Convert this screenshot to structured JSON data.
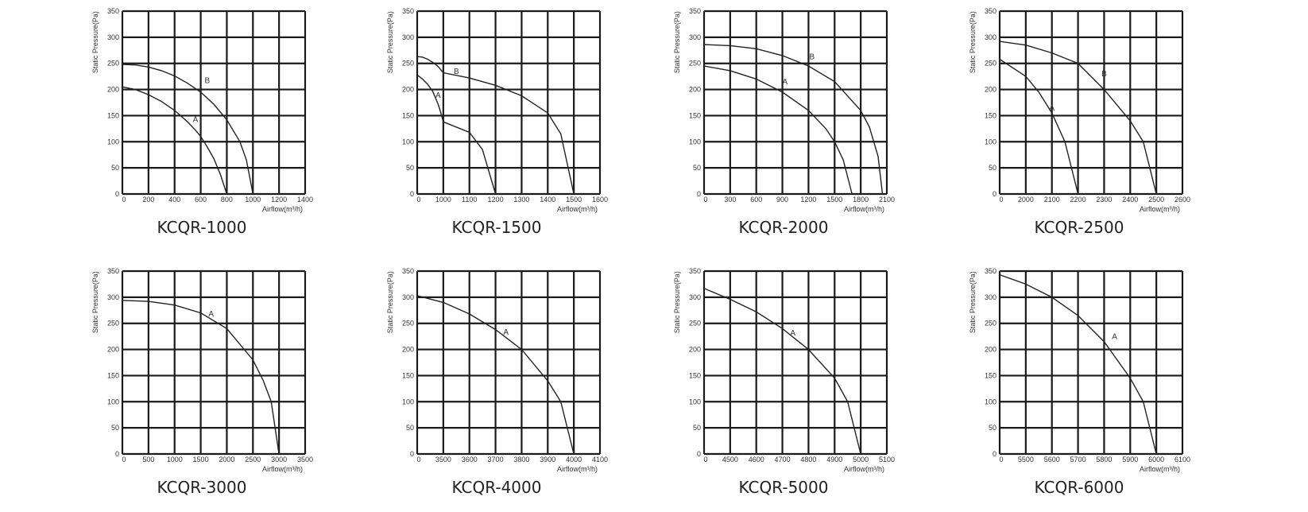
{
  "chart_data": [
    {
      "type": "line",
      "title": "KCQR-1000",
      "xlabel": "Airflow(m³/h)",
      "ylabel": "Static Pressure(Pa)",
      "x_ticks": [
        "0",
        "200",
        "400",
        "600",
        "800",
        "1000",
        "1200",
        "1400"
      ],
      "y_ticks": [
        "0",
        "50",
        "100",
        "150",
        "200",
        "250",
        "300",
        "350"
      ],
      "xlim": [
        0,
        1400
      ],
      "ylim": [
        0,
        350
      ],
      "grid": true,
      "series": [
        {
          "name": "A",
          "x": [
            0,
            100,
            200,
            300,
            400,
            500,
            560,
            600,
            650,
            700,
            750,
            800
          ],
          "y": [
            205,
            200,
            190,
            177,
            160,
            138,
            122,
            110,
            90,
            68,
            38,
            0
          ],
          "label_at": [
            560,
            138
          ]
        },
        {
          "name": "B",
          "x": [
            0,
            100,
            200,
            300,
            400,
            500,
            600,
            700,
            800,
            900,
            950,
            1000
          ],
          "y": [
            248,
            247,
            243,
            236,
            226,
            212,
            195,
            172,
            142,
            100,
            65,
            0
          ],
          "label_at": [
            650,
            212
          ]
        }
      ]
    },
    {
      "type": "line",
      "title": "KCQR-1500",
      "xlabel": "Airflow(m³/h)",
      "ylabel": "Static Pressure(Pa)",
      "x_ticks": [
        "0",
        "1000",
        "1100",
        "1200",
        "1300",
        "1400",
        "1500",
        "1600"
      ],
      "y_ticks": [
        "0",
        "50",
        "100",
        "150",
        "200",
        "250",
        "300",
        "350"
      ],
      "xlim": [
        0,
        1600
      ],
      "ylim": [
        0,
        350
      ],
      "grid": true,
      "series": [
        {
          "name": "A",
          "x": [
            0,
            200,
            400,
            600,
            800,
            900,
            1000,
            1100,
            1150,
            1200
          ],
          "y": [
            228,
            220,
            210,
            196,
            172,
            156,
            138,
            118,
            85,
            0
          ],
          "label_at": [
            800,
            184
          ]
        },
        {
          "name": "B",
          "x": [
            0,
            200,
            400,
            600,
            800,
            1000,
            1100,
            1200,
            1300,
            1400,
            1450,
            1500
          ],
          "y": [
            263,
            262,
            258,
            252,
            244,
            232,
            222,
            208,
            188,
            155,
            115,
            0
          ],
          "label_at": [
            1050,
            230
          ]
        }
      ]
    },
    {
      "type": "line",
      "title": "KCQR-2000",
      "xlabel": "Airflow(m³/h)",
      "ylabel": "Static Pressure(Pa)",
      "x_ticks": [
        "0",
        "300",
        "600",
        "900",
        "1200",
        "1500",
        "1800",
        "2100"
      ],
      "y_ticks": [
        "0",
        "50",
        "100",
        "150",
        "200",
        "250",
        "300",
        "350"
      ],
      "xlim": [
        0,
        2100
      ],
      "ylim": [
        0,
        350
      ],
      "grid": true,
      "series": [
        {
          "name": "A",
          "x": [
            0,
            300,
            600,
            900,
            1200,
            1400,
            1500,
            1600,
            1700
          ],
          "y": [
            245,
            236,
            220,
            195,
            160,
            125,
            100,
            65,
            0
          ],
          "label_at": [
            930,
            210
          ]
        },
        {
          "name": "B",
          "x": [
            0,
            300,
            600,
            900,
            1200,
            1500,
            1800,
            1900,
            2000,
            2050
          ],
          "y": [
            286,
            284,
            278,
            265,
            245,
            215,
            160,
            128,
            72,
            0
          ],
          "label_at": [
            1240,
            258
          ]
        }
      ]
    },
    {
      "type": "line",
      "title": "KCQR-2500",
      "xlabel": "Airflow(m³/h)",
      "ylabel": "Static Pressure(Pa)",
      "x_ticks": [
        "0",
        "2000",
        "2100",
        "2200",
        "2300",
        "2400",
        "2500",
        "2600"
      ],
      "y_ticks": [
        "0",
        "50",
        "100",
        "150",
        "200",
        "250",
        "300",
        "350"
      ],
      "xlim": [
        0,
        2600
      ],
      "ylim": [
        0,
        350
      ],
      "grid": true,
      "series": [
        {
          "name": "A",
          "x": [
            0,
            2000,
            2050,
            2100,
            2150,
            2200
          ],
          "y": [
            258,
            225,
            195,
            155,
            100,
            0
          ],
          "label_at": [
            2100,
            160
          ]
        },
        {
          "name": "B",
          "x": [
            0,
            2000,
            2100,
            2200,
            2300,
            2400,
            2450,
            2500
          ],
          "y": [
            292,
            285,
            270,
            250,
            200,
            140,
            100,
            0
          ],
          "label_at": [
            2300,
            225
          ]
        }
      ]
    },
    {
      "type": "line",
      "title": "KCQR-3000",
      "xlabel": "Airflow(m³/h)",
      "ylabel": "Static Pressure(Pa)",
      "x_ticks": [
        "0",
        "500",
        "1000",
        "1500",
        "2000",
        "2500",
        "3000",
        "3500"
      ],
      "y_ticks": [
        "0",
        "50",
        "100",
        "150",
        "200",
        "250",
        "300",
        "350"
      ],
      "xlim": [
        0,
        3500
      ],
      "ylim": [
        0,
        350
      ],
      "grid": true,
      "series": [
        {
          "name": "A",
          "x": [
            0,
            500,
            1000,
            1500,
            2000,
            2500,
            2700,
            2850,
            3000
          ],
          "y": [
            294,
            292,
            285,
            270,
            240,
            180,
            140,
            100,
            0
          ],
          "label_at": [
            1700,
            263
          ]
        }
      ]
    },
    {
      "type": "line",
      "title": "KCQR-4000",
      "xlabel": "Airflow(m³/h)",
      "ylabel": "Static Pressure(Pa)",
      "x_ticks": [
        "0",
        "3500",
        "3600",
        "3700",
        "3800",
        "3900",
        "4000",
        "4100"
      ],
      "y_ticks": [
        "0",
        "50",
        "100",
        "150",
        "200",
        "250",
        "300",
        "350"
      ],
      "xlim": [
        0,
        4100
      ],
      "ylim": [
        0,
        350
      ],
      "grid": true,
      "series": [
        {
          "name": "A",
          "x": [
            0,
            3500,
            3600,
            3700,
            3800,
            3900,
            3950,
            4000
          ],
          "y": [
            303,
            290,
            268,
            238,
            200,
            140,
            100,
            0
          ],
          "label_at": [
            3740,
            228
          ]
        }
      ]
    },
    {
      "type": "line",
      "title": "KCQR-5000",
      "xlabel": "Airflow(m³/h)",
      "ylabel": "Static Pressure(Pa)",
      "x_ticks": [
        "0",
        "4500",
        "4600",
        "4700",
        "4800",
        "4900",
        "5000",
        "5100"
      ],
      "y_ticks": [
        "0",
        "50",
        "100",
        "150",
        "200",
        "250",
        "300",
        "350"
      ],
      "xlim": [
        0,
        5100
      ],
      "ylim": [
        0,
        350
      ],
      "grid": true,
      "series": [
        {
          "name": "A",
          "x": [
            0,
            4500,
            4600,
            4700,
            4800,
            4900,
            4950,
            5000
          ],
          "y": [
            317,
            296,
            272,
            240,
            200,
            145,
            100,
            0
          ],
          "label_at": [
            4740,
            227
          ]
        }
      ]
    },
    {
      "type": "line",
      "title": "KCQR-6000",
      "xlabel": "Airflow(m³/h)",
      "ylabel": "Static Pressure(Pa)",
      "x_ticks": [
        "0",
        "5500",
        "5600",
        "5700",
        "5800",
        "5900",
        "6000",
        "6100"
      ],
      "y_ticks": [
        "0",
        "50",
        "100",
        "150",
        "200",
        "250",
        "300",
        "350"
      ],
      "xlim": [
        0,
        6100
      ],
      "ylim": [
        0,
        350
      ],
      "grid": true,
      "series": [
        {
          "name": "A",
          "x": [
            0,
            5500,
            5600,
            5700,
            5800,
            5900,
            5950,
            6000
          ],
          "y": [
            343,
            325,
            300,
            265,
            215,
            145,
            100,
            0
          ],
          "label_at": [
            5840,
            220
          ]
        }
      ]
    }
  ]
}
